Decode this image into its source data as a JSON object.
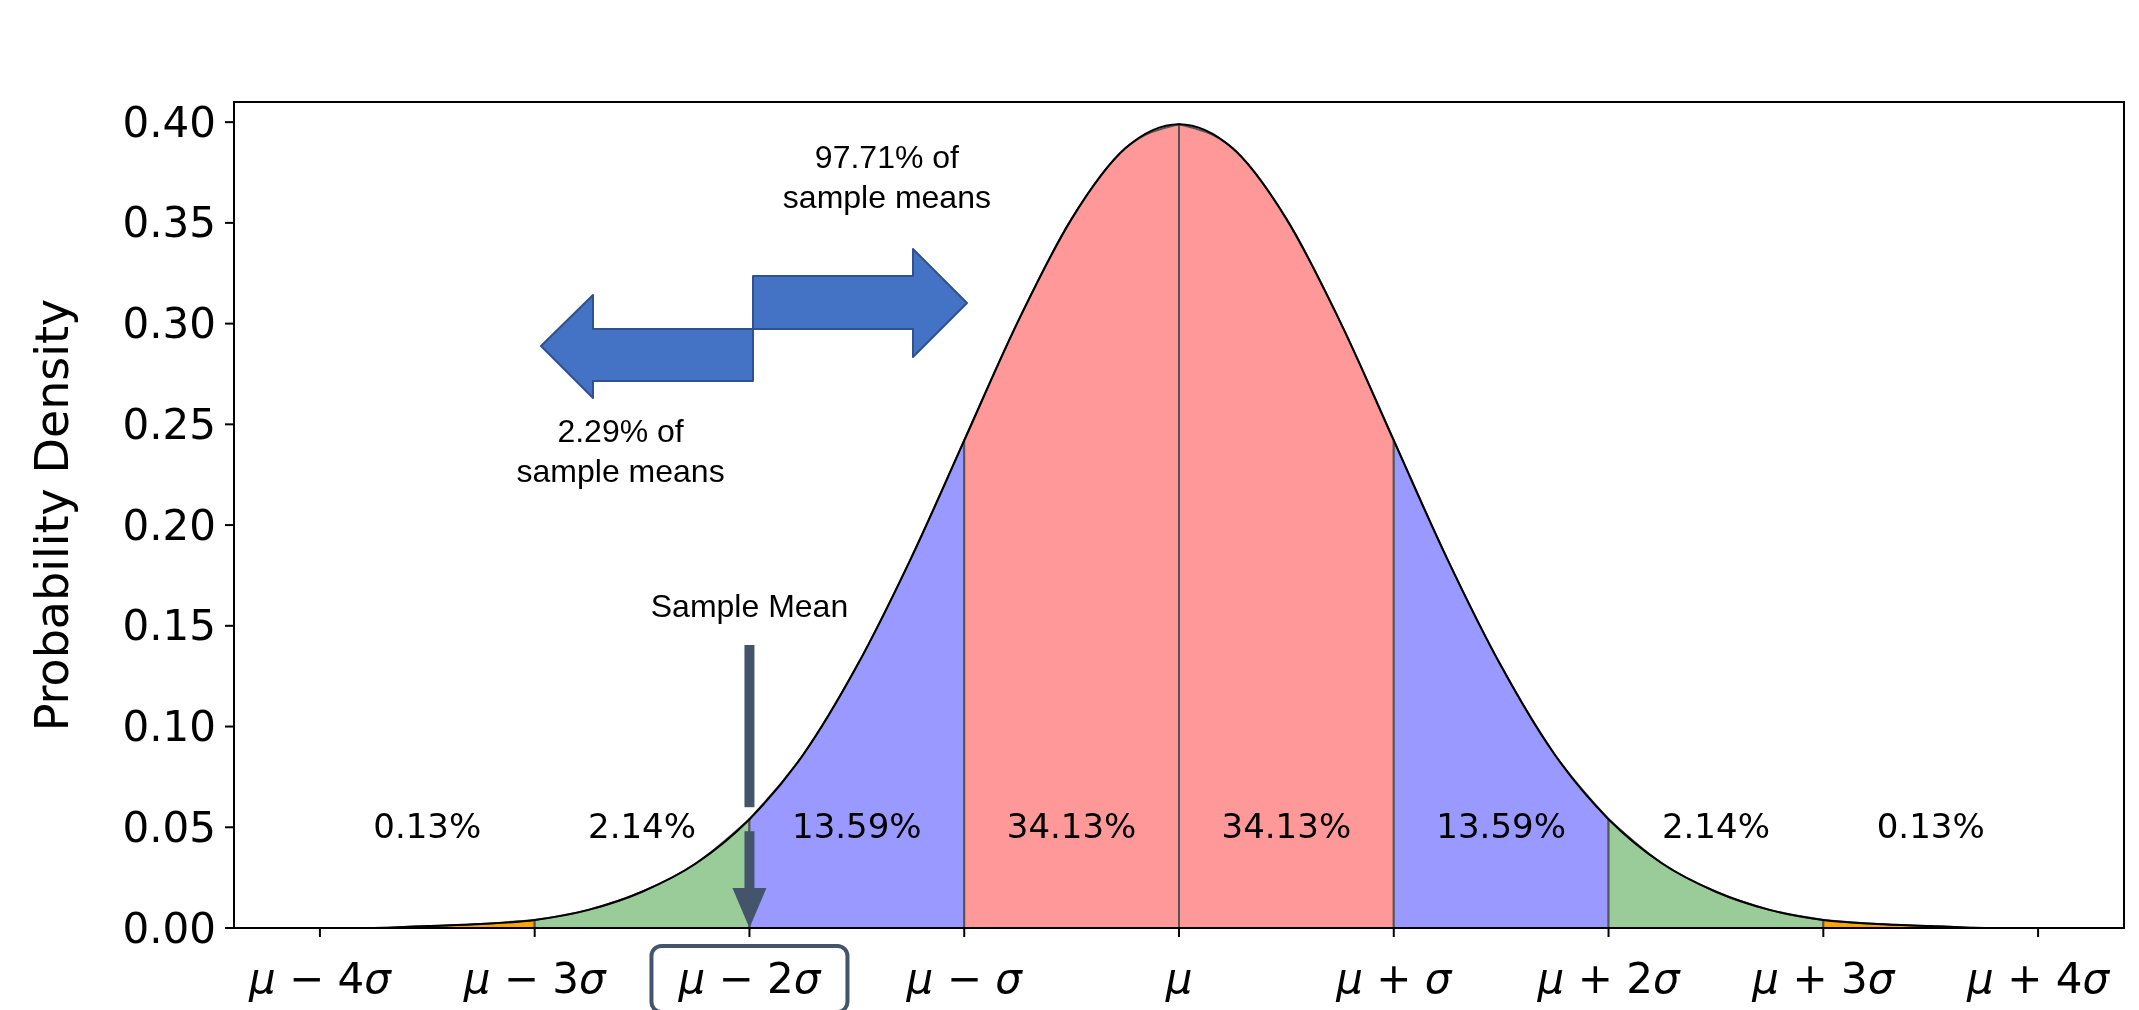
{
  "chart_data": {
    "type": "area",
    "ylabel": "Probability Density",
    "xlim": [
      -4.4,
      4.4
    ],
    "ylim": [
      0,
      0.41
    ],
    "xticks": [
      {
        "value": -4,
        "label": "μ − 4σ"
      },
      {
        "value": -3,
        "label": "μ − 3σ"
      },
      {
        "value": -2,
        "label": "μ − 2σ"
      },
      {
        "value": -1,
        "label": "μ − σ"
      },
      {
        "value": 0,
        "label": "μ"
      },
      {
        "value": 1,
        "label": "μ + σ"
      },
      {
        "value": 2,
        "label": "μ + 2σ"
      },
      {
        "value": 3,
        "label": "μ + 3σ"
      },
      {
        "value": 4,
        "label": "μ + 4σ"
      }
    ],
    "yticks": [
      {
        "value": 0,
        "label": "0.00"
      },
      {
        "value": 0.05,
        "label": "0.05"
      },
      {
        "value": 0.1,
        "label": "0.10"
      },
      {
        "value": 0.15,
        "label": "0.15"
      },
      {
        "value": 0.2,
        "label": "0.20"
      },
      {
        "value": 0.25,
        "label": "0.25"
      },
      {
        "value": 0.3,
        "label": "0.30"
      },
      {
        "value": 0.35,
        "label": "0.35"
      },
      {
        "value": 0.4,
        "label": "0.40"
      }
    ],
    "grid": false,
    "series": [
      {
        "color": "#ffa500",
        "x": [
          -4.4,
          -4.25,
          -4,
          -3.75,
          -3.5,
          -3.25,
          -3
        ],
        "values": [
          0,
          0,
          0,
          0,
          0.001,
          0.002,
          0.004
        ]
      },
      {
        "color": "#99cc99",
        "x": [
          -3,
          -2.75,
          -2.5,
          -2.25,
          -2
        ],
        "values": [
          0.004,
          0.009,
          0.018,
          0.032,
          0.054
        ]
      },
      {
        "color": "#9999ff",
        "x": [
          -2,
          -1.75,
          -1.5,
          -1.25,
          -1
        ],
        "values": [
          0.054,
          0.086,
          0.13,
          0.183,
          0.242
        ]
      },
      {
        "color": "#ff9999",
        "x": [
          -1,
          -0.75,
          -0.5,
          -0.25,
          0
        ],
        "values": [
          0.242,
          0.301,
          0.352,
          0.387,
          0.399
        ]
      },
      {
        "color": "#ff9999",
        "x": [
          0,
          0.25,
          0.5,
          0.75,
          1
        ],
        "values": [
          0.399,
          0.387,
          0.352,
          0.301,
          0.242
        ]
      },
      {
        "color": "#9999ff",
        "x": [
          1,
          1.25,
          1.5,
          1.75,
          2
        ],
        "values": [
          0.242,
          0.183,
          0.13,
          0.086,
          0.054
        ]
      },
      {
        "color": "#99cc99",
        "x": [
          2,
          2.25,
          2.5,
          2.75,
          3
        ],
        "values": [
          0.054,
          0.032,
          0.018,
          0.009,
          0.004
        ]
      },
      {
        "color": "#ffa500",
        "x": [
          3,
          3.25,
          3.5,
          3.75,
          4,
          4.25,
          4.4
        ],
        "values": [
          0.004,
          0.002,
          0.001,
          0,
          0,
          0,
          0
        ]
      },
      {
        "type": "line",
        "color": "#000000",
        "x": [
          -4.4,
          -4.25,
          -4,
          -3.75,
          -3.5,
          -3.25,
          -3,
          -2.75,
          -2.5,
          -2.25,
          -2,
          -1.75,
          -1.5,
          -1.25,
          -1,
          -0.75,
          -0.5,
          -0.25,
          0,
          0.25,
          0.5,
          0.75,
          1,
          1.25,
          1.5,
          1.75,
          2,
          2.25,
          2.5,
          2.75,
          3,
          3.25,
          3.5,
          3.75,
          4,
          4.25,
          4.4
        ],
        "values": [
          0,
          0,
          0,
          0,
          0.001,
          0.002,
          0.004,
          0.009,
          0.018,
          0.032,
          0.054,
          0.086,
          0.13,
          0.183,
          0.242,
          0.301,
          0.352,
          0.387,
          0.399,
          0.387,
          0.352,
          0.301,
          0.242,
          0.183,
          0.13,
          0.086,
          0.054,
          0.032,
          0.018,
          0.009,
          0.004,
          0.002,
          0.001,
          0,
          0,
          0,
          0
        ]
      }
    ],
    "annotations": [
      "0.13%",
      "2.14%",
      "13.59%",
      "34.13%",
      "34.13%",
      "13.59%",
      "2.14%",
      "0.13%",
      "Sample Mean",
      "97.71% of\nsample means",
      "2.29% of\nsample means"
    ]
  }
}
